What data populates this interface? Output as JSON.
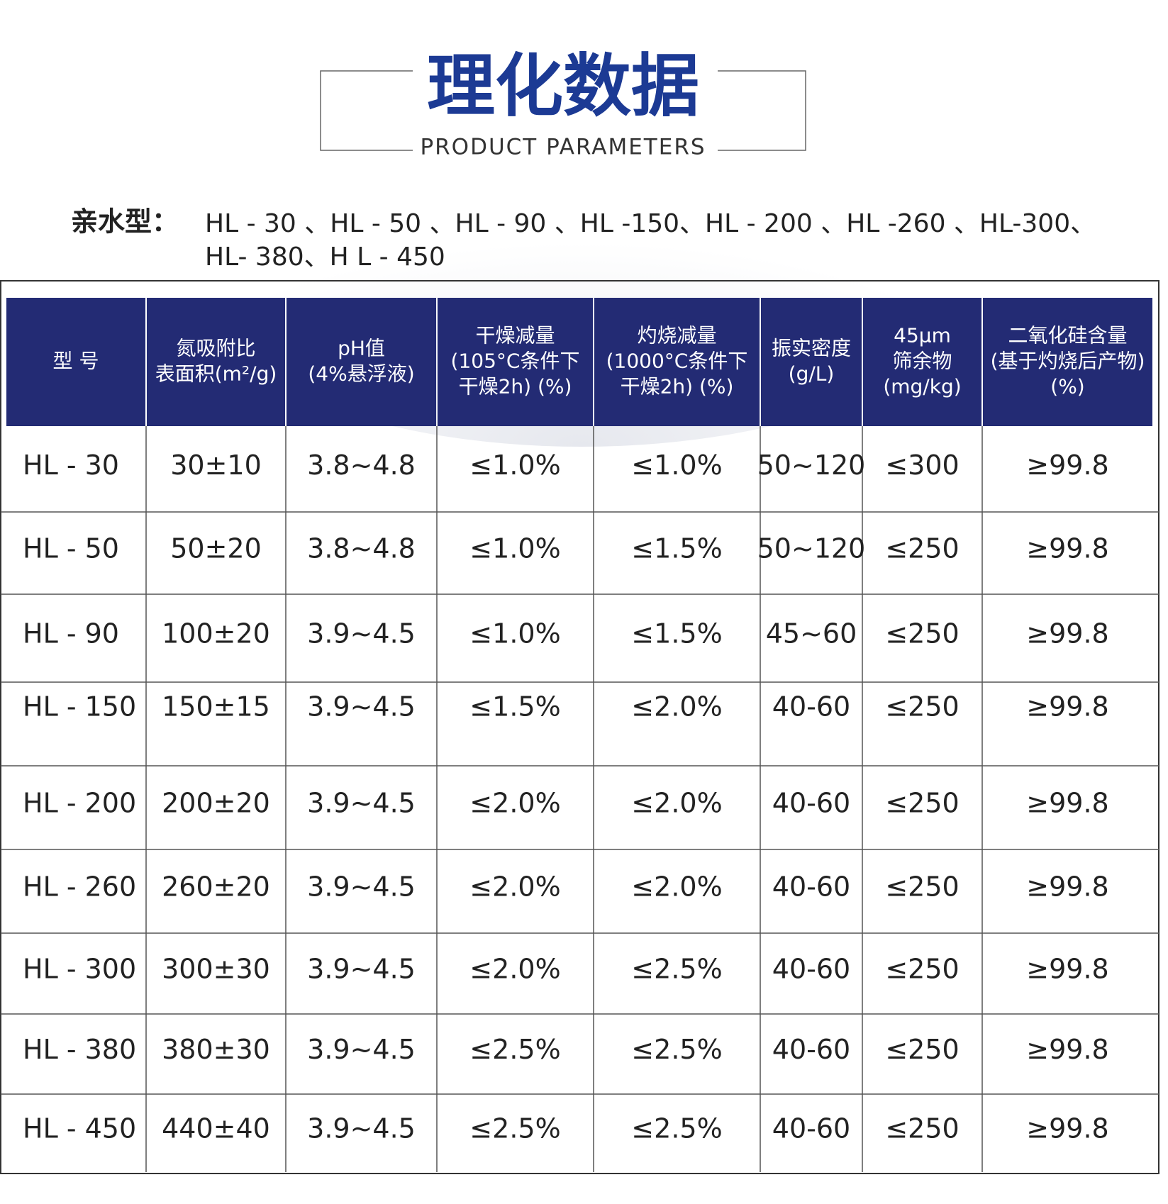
{
  "header": {
    "title": "理化数据",
    "subtitle": "PRODUCT PARAMETERS"
  },
  "intro": {
    "label": "亲水型：",
    "lines": [
      "HL - 30 、HL - 50 、HL - 90 、HL -150、HL - 200 、HL -260 、HL-300、",
      "HL- 380、H L - 450"
    ]
  },
  "table": {
    "header": [
      [
        "型 号"
      ],
      [
        "氮吸附比",
        "表面积(m²/g)"
      ],
      [
        "pH值",
        "(4%悬浮液)"
      ],
      [
        "干燥减量",
        "(105°C条件下",
        "干燥2h) (%)"
      ],
      [
        "灼烧减量",
        "(1000°C条件下",
        "干燥2h) (%)"
      ],
      [
        "振实密度",
        "(g/L)"
      ],
      [
        "45μm",
        "筛余物",
        "(mg/kg)"
      ],
      [
        "二氧化硅含量",
        "(基于灼烧后产物)",
        "(%)"
      ]
    ],
    "rows": [
      [
        "HL - 30",
        "30±10",
        "3.8~4.8",
        "≤1.0%",
        "≤1.0%",
        "50~120",
        "≤300",
        "≥99.8"
      ],
      [
        "HL - 50",
        "50±20",
        "3.8~4.8",
        "≤1.0%",
        "≤1.5%",
        "50~120",
        "≤250",
        "≥99.8"
      ],
      [
        "HL - 90",
        "100±20",
        "3.9~4.5",
        "≤1.0%",
        "≤1.5%",
        "45~60",
        "≤250",
        "≥99.8"
      ],
      [
        "HL - 150",
        "150±15",
        "3.9~4.5",
        "≤1.5%",
        "≤2.0%",
        "40-60",
        "≤250",
        "≥99.8"
      ],
      [
        "HL - 200",
        "200±20",
        "3.9~4.5",
        "≤2.0%",
        "≤2.0%",
        "40-60",
        "≤250",
        "≥99.8"
      ],
      [
        "HL - 260",
        "260±20",
        "3.9~4.5",
        "≤2.0%",
        "≤2.0%",
        "40-60",
        "≤250",
        "≥99.8"
      ],
      [
        "HL - 300",
        "300±30",
        "3.9~4.5",
        "≤2.0%",
        "≤2.5%",
        "40-60",
        "≤250",
        "≥99.8"
      ],
      [
        "HL - 380",
        "380±30",
        "3.9~4.5",
        "≤2.5%",
        "≤2.5%",
        "40-60",
        "≤250",
        "≥99.8"
      ],
      [
        "HL - 450",
        "440±40",
        "3.9~4.5",
        "≤2.5%",
        "≤2.5%",
        "40-60",
        "≤250",
        "≥99.8"
      ]
    ]
  }
}
